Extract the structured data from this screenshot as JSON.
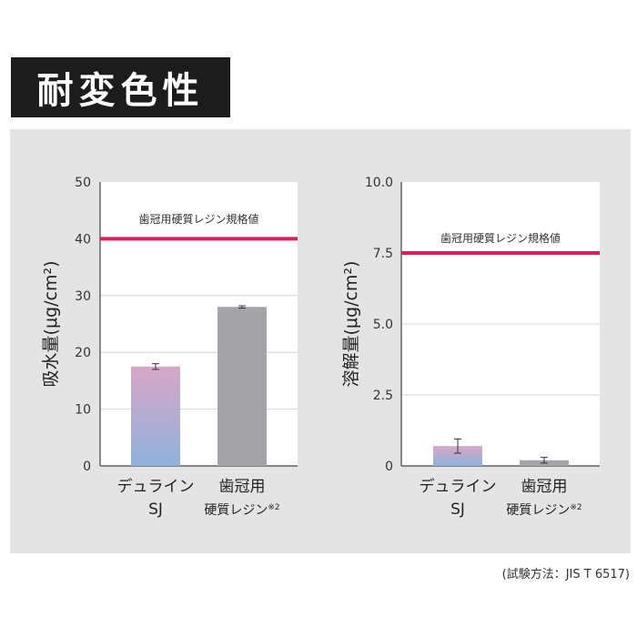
{
  "page_title": "耐変色性",
  "footnote": "(試験方法：JIS T 6517)",
  "colors": {
    "spec_line": "#d81e5b",
    "gradient_top": "#d8a6c8",
    "gradient_bottom": "#8fb2dc",
    "comparison_bar": "#a4a4a8",
    "gridline": "#d4d4d4",
    "panel_bg": "#e4e4e4",
    "plot_bg": "#ffffff"
  },
  "chart_data": [
    {
      "type": "bar",
      "ylabel": "吸水量(μg/cm²)",
      "ylim": [
        0,
        50
      ],
      "yticks": [
        "0",
        "10",
        "20",
        "30",
        "40",
        "50"
      ],
      "categories": [
        [
          "デュライン",
          "SJ"
        ],
        [
          "歯冠用",
          "硬質レジン※2"
        ]
      ],
      "values": [
        17.5,
        28.0
      ],
      "error": [
        0.5,
        0.2
      ],
      "grid": true,
      "reference_line": {
        "value": 40,
        "label": "歯冠用硬質レジン規格値"
      }
    },
    {
      "type": "bar",
      "ylabel": "溶解量(μg/cm²)",
      "ylim": [
        0,
        10
      ],
      "yticks": [
        "0",
        "2.5",
        "5.0",
        "7.5",
        "10.0"
      ],
      "categories": [
        [
          "デュライン",
          "SJ"
        ],
        [
          "歯冠用",
          "硬質レジン※2"
        ]
      ],
      "values": [
        0.7,
        0.2
      ],
      "error": [
        0.25,
        0.1
      ],
      "grid": true,
      "reference_line": {
        "value": 7.5,
        "label": "歯冠用硬質レジン規格値"
      }
    }
  ]
}
